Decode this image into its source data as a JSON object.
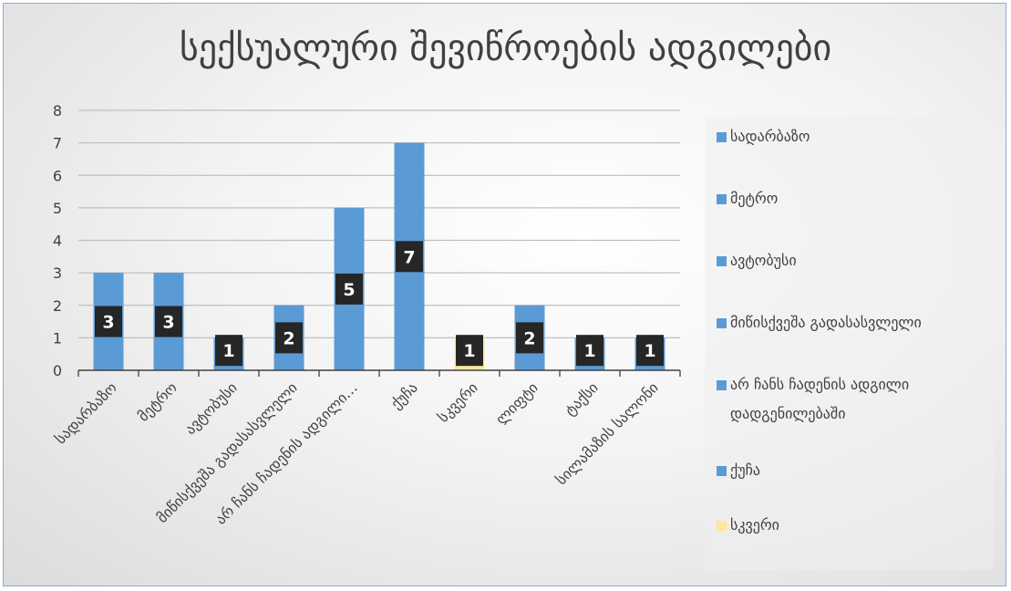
{
  "chart_data": {
    "type": "bar",
    "title": "სექსუალური შევიწროების ადგილები",
    "categories": [
      "სადარბაზო",
      "მეტრო",
      "ავტობუსი",
      "მიწისქვეშა გადასასვლელი",
      "არ ჩანს ჩადენის ადგილი…",
      "ქუჩა",
      "სკვერი",
      "ლიფტი",
      "ტაქსი",
      "სილამაზის სალონი"
    ],
    "values": [
      3,
      3,
      1,
      2,
      5,
      7,
      1,
      2,
      1,
      1
    ],
    "bar_colors": [
      "#5b9bd5",
      "#5b9bd5",
      "#5b9bd5",
      "#5b9bd5",
      "#5b9bd5",
      "#5b9bd5",
      "#ffe699",
      "#5b9bd5",
      "#5b9bd5",
      "#5b9bd5"
    ],
    "data_labels": [
      "3",
      "3",
      "1",
      "2",
      "5",
      "7",
      "1",
      "2",
      "1",
      "1"
    ],
    "ylim": [
      0,
      8
    ],
    "yticks": [
      "0",
      "1",
      "2",
      "3",
      "4",
      "5",
      "6",
      "7",
      "8"
    ],
    "grid": true,
    "legend_position": "right",
    "legend": [
      {
        "label": "სადარბაზო",
        "color": "#5b9bd5"
      },
      {
        "label": "მეტრო",
        "color": "#5b9bd5"
      },
      {
        "label": "ავტობუსი",
        "color": "#5b9bd5"
      },
      {
        "label": "მიწისქვეშა გადასასვლელი",
        "color": "#5b9bd5"
      },
      {
        "label": "არ ჩანს ჩადენის ადგილი დადგენილებაში",
        "color": "#5b9bd5"
      },
      {
        "label": "ქუჩა",
        "color": "#5b9bd5"
      },
      {
        "label": "სკვერი",
        "color": "#ffe699"
      }
    ]
  }
}
